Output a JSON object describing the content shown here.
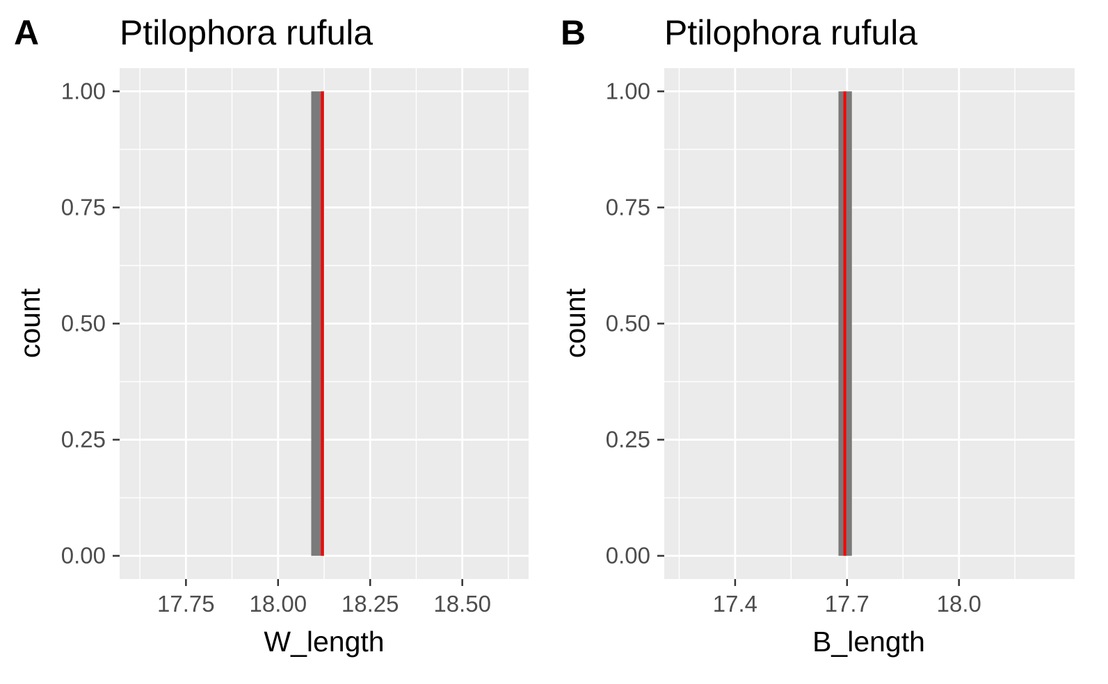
{
  "chart_data": [
    {
      "type": "bar",
      "panel_tag": "A",
      "title": "Ptilophora rufula",
      "xlabel": "W_length",
      "ylabel": "count",
      "xlim": [
        17.57,
        18.68
      ],
      "ylim": [
        -0.05,
        1.05
      ],
      "xticks": [
        17.75,
        18.0,
        18.25,
        18.5
      ],
      "xtick_labels": [
        "17.75",
        "18.00",
        "18.25",
        "18.50"
      ],
      "yticks": [
        0,
        0.25,
        0.5,
        0.75,
        1.0
      ],
      "ytick_labels": [
        "0.00",
        "0.25",
        "0.50",
        "0.75",
        "1.00"
      ],
      "bars": [
        {
          "x0": 18.09,
          "x1": 18.125,
          "count": 1
        }
      ],
      "vline": {
        "x": 18.12,
        "color": "#ff0000"
      },
      "bar_color": "#7a7a7a",
      "panel_bg": "#ebebeb",
      "grid": true
    },
    {
      "type": "bar",
      "panel_tag": "B",
      "title": "Ptilophora rufula",
      "xlabel": "B_length",
      "ylabel": "count",
      "xlim": [
        17.21,
        18.31
      ],
      "ylim": [
        -0.05,
        1.05
      ],
      "xticks": [
        17.4,
        17.7,
        18.0
      ],
      "xtick_labels": [
        "17.4",
        "17.7",
        "18.0"
      ],
      "yticks": [
        0,
        0.25,
        0.5,
        0.75,
        1.0
      ],
      "ytick_labels": [
        "0.00",
        "0.25",
        "0.50",
        "0.75",
        "1.00"
      ],
      "bars": [
        {
          "x0": 17.677,
          "x1": 17.713,
          "count": 1
        }
      ],
      "vline": {
        "x": 17.694,
        "color": "#ff0000"
      },
      "bar_color": "#7a7a7a",
      "panel_bg": "#ebebeb",
      "grid": true
    }
  ]
}
